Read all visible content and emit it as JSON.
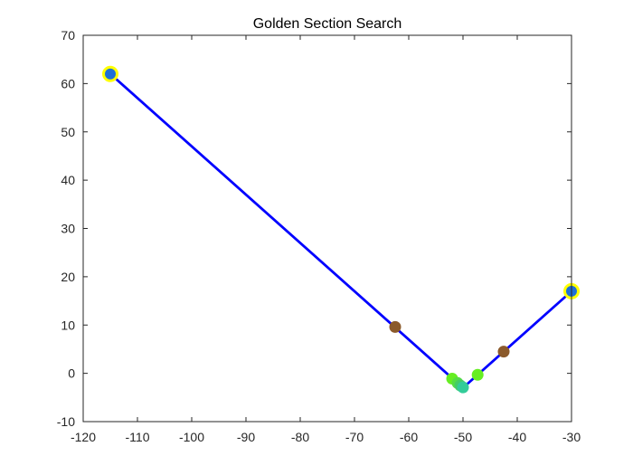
{
  "chart_data": {
    "type": "line",
    "title": "Golden Section Search",
    "xlabel": "",
    "ylabel": "",
    "xlim": [
      -120,
      -30
    ],
    "ylim": [
      -10,
      70
    ],
    "xticks": [
      -120,
      -110,
      -100,
      -90,
      -80,
      -70,
      -60,
      -50,
      -40,
      -30
    ],
    "yticks": [
      -10,
      0,
      10,
      20,
      30,
      40,
      50,
      60,
      70
    ],
    "grid": false,
    "legend": "none",
    "function_curve": {
      "color": "#0000ff",
      "x": [
        -115,
        -50,
        -30
      ],
      "y": [
        62,
        -3,
        17
      ]
    },
    "endpoint_markers": [
      {
        "x": -115,
        "y": 62,
        "fill": "#1f6fd6",
        "ring": "#ffff00"
      },
      {
        "x": -30,
        "y": 17,
        "fill": "#1f6fd6",
        "ring": "#ffff00"
      }
    ],
    "search_points": [
      {
        "x": -62.5,
        "y": 9.6,
        "color": "#8b5a2b"
      },
      {
        "x": -42.5,
        "y": 4.5,
        "color": "#8b5a2b"
      },
      {
        "x": -52.0,
        "y": -1.1,
        "color": "#66ee22"
      },
      {
        "x": -47.3,
        "y": -0.3,
        "color": "#66ee22"
      },
      {
        "x": -51.0,
        "y": -2.0,
        "color": "#55dd44"
      },
      {
        "x": -50.5,
        "y": -2.5,
        "color": "#44cc66"
      },
      {
        "x": -50.0,
        "y": -2.9,
        "color": "#33cc99"
      }
    ]
  }
}
